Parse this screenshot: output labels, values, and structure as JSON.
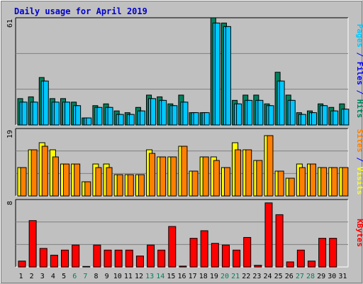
{
  "page": {
    "title": "Daily usage for April 2019"
  },
  "colors": {
    "background": "#c0c0c0",
    "panel": "#c0c0c0",
    "hits": "#00805c",
    "files": "#00c8ff",
    "pages": "#00c8ff",
    "visits": "#ffff00",
    "sites": "#ff8000",
    "kbytes": "#ff0000",
    "weekend_tick": "#00805c",
    "weekday_tick": "#000000",
    "separator": "#0000ff"
  },
  "legend": {
    "pages": "Pages",
    "files": "Files",
    "hits": "Hits",
    "sites": "Sites",
    "visits": "Visits",
    "kbytes": "KBytes",
    "sep": "/"
  },
  "chart_data": [
    {
      "type": "bar",
      "panel": "hits_files_pages",
      "ymax_label": "61",
      "ylim": [
        0,
        61
      ],
      "categories": [
        "1",
        "2",
        "3",
        "4",
        "5",
        "6",
        "7",
        "8",
        "9",
        "10",
        "11",
        "12",
        "13",
        "14",
        "15",
        "16",
        "17",
        "18",
        "19",
        "20",
        "21",
        "22",
        "23",
        "24",
        "25",
        "26",
        "27",
        "28",
        "29",
        "30",
        "31"
      ],
      "weekend": [
        "6",
        "7",
        "13",
        "14",
        "20",
        "21",
        "27",
        "28"
      ],
      "series": [
        {
          "name": "Hits",
          "values": [
            15,
            16,
            27,
            15,
            15,
            13,
            4,
            11,
            12,
            8,
            7,
            10,
            17,
            16,
            12,
            17,
            7,
            7,
            61,
            58,
            14,
            17,
            17,
            12,
            30,
            17,
            7,
            8,
            12,
            10,
            12
          ]
        },
        {
          "name": "Files",
          "values": [
            13,
            13,
            25,
            13,
            13,
            11,
            4,
            10,
            10,
            6,
            6,
            8,
            15,
            14,
            11,
            13,
            7,
            7,
            58,
            56,
            12,
            14,
            14,
            11,
            25,
            14,
            6,
            7,
            11,
            8,
            9
          ]
        },
        {
          "name": "Pages",
          "values": [
            13,
            13,
            25,
            13,
            13,
            11,
            4,
            10,
            10,
            6,
            6,
            8,
            15,
            14,
            11,
            13,
            7,
            7,
            58,
            56,
            12,
            14,
            14,
            11,
            25,
            14,
            6,
            7,
            11,
            8,
            9
          ]
        }
      ]
    },
    {
      "type": "bar",
      "panel": "sites_visits",
      "ymax_label": "19",
      "ylim": [
        0,
        19
      ],
      "categories": [
        "1",
        "2",
        "3",
        "4",
        "5",
        "6",
        "7",
        "8",
        "9",
        "10",
        "11",
        "12",
        "13",
        "14",
        "15",
        "16",
        "17",
        "18",
        "19",
        "20",
        "21",
        "22",
        "23",
        "24",
        "25",
        "26",
        "27",
        "28",
        "29",
        "30",
        "31"
      ],
      "series": [
        {
          "name": "Visits",
          "values": [
            8,
            13,
            15,
            13,
            9,
            9,
            4,
            9,
            9,
            6,
            6,
            6,
            13,
            11,
            11,
            14,
            7,
            11,
            11,
            8,
            15,
            13,
            10,
            17,
            7,
            5,
            9,
            9,
            8,
            8,
            8
          ]
        },
        {
          "name": "Sites",
          "values": [
            8,
            13,
            14,
            11,
            9,
            9,
            4,
            8,
            8,
            6,
            6,
            6,
            12,
            11,
            11,
            14,
            7,
            11,
            10,
            8,
            13,
            13,
            10,
            17,
            7,
            5,
            8,
            9,
            8,
            8,
            8
          ]
        }
      ]
    },
    {
      "type": "bar",
      "panel": "kbytes",
      "ymax_label": "8",
      "ylim": [
        0,
        8
      ],
      "categories": [
        "1",
        "2",
        "3",
        "4",
        "5",
        "6",
        "7",
        "8",
        "9",
        "10",
        "11",
        "12",
        "13",
        "14",
        "15",
        "16",
        "17",
        "18",
        "19",
        "20",
        "21",
        "22",
        "23",
        "24",
        "25",
        "26",
        "27",
        "28",
        "29",
        "30",
        "31"
      ],
      "series": [
        {
          "name": "KBytes",
          "values": [
            0.7,
            5.5,
            2.2,
            1.4,
            2.0,
            2.6,
            0.06,
            2.6,
            2.0,
            2.0,
            2.0,
            1.3,
            2.6,
            2.0,
            4.8,
            0.1,
            3.4,
            4.3,
            2.8,
            2.6,
            2.0,
            3.5,
            0.2,
            7.6,
            6.2,
            0.6,
            2.0,
            0.7,
            3.4,
            3.4,
            0
          ]
        }
      ]
    }
  ]
}
